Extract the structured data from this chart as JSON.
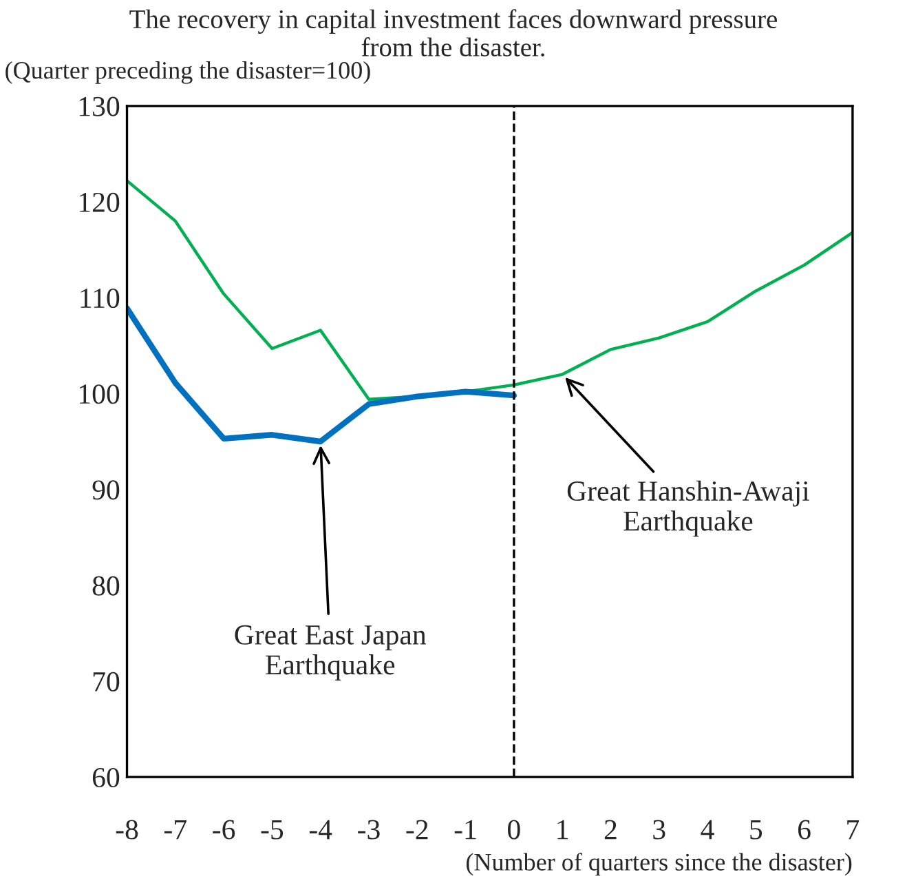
{
  "chart_data": {
    "type": "line",
    "title": "The recovery in capital investment faces downward pressure\nfrom the disaster.",
    "ylabel": "(Quarter preceding the disaster=100)",
    "xlabel": "(Number of quarters since the disaster)",
    "x": [
      -8,
      -7,
      -6,
      -5,
      -4,
      -3,
      -2,
      -1,
      0,
      1,
      2,
      3,
      4,
      5,
      6,
      7
    ],
    "series": [
      {
        "color": "#00b050",
        "values": [
          122.2,
          118.0,
          110.4,
          104.7,
          106.6,
          99.4,
          99.7,
          100.2,
          100.9,
          102.0,
          104.6,
          105.8,
          107.5,
          110.7,
          113.4,
          116.8
        ]
      },
      {
        "color": "#0070c0",
        "values": [
          108.9,
          101.1,
          95.3,
          95.7,
          95.0,
          98.9,
          99.7,
          100.2,
          99.8,
          null,
          null,
          null,
          null,
          null,
          null,
          null
        ]
      }
    ],
    "xlim": [
      -8,
      7
    ],
    "xticks": [
      -8,
      -7,
      -6,
      -5,
      -4,
      -3,
      -2,
      -1,
      0,
      1,
      2,
      3,
      4,
      5,
      6,
      7
    ],
    "ylim": [
      60,
      130
    ],
    "yticks": [
      60,
      70,
      80,
      90,
      100,
      110,
      120,
      130
    ],
    "ref_lines": [
      {
        "axis": "x",
        "value": 0,
        "color": "#000000",
        "line_style": "dashed"
      }
    ],
    "annotations": [
      {
        "text": "Great East Japan\nEarthquake",
        "x": -4,
        "y": 95.0
      },
      {
        "text": "Great Hanshin-Awaji\nEarthquake",
        "x": 1,
        "y": 102.0
      }
    ],
    "grid": false,
    "marker": "none",
    "line_style": "solid"
  }
}
